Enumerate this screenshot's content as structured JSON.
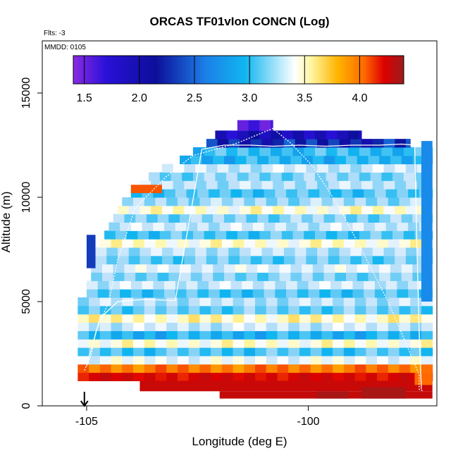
{
  "chart_data": {
    "type": "heatmap",
    "title": "ORCAS TF01vIon CONCN (Log)",
    "subtitle_flights": "Flts: -3",
    "date_label": "MMDD: 0105",
    "xlabel": "Longitude (deg E)",
    "ylabel": "Altitude (m)",
    "xlim": [
      -106.0,
      -97.1
    ],
    "ylim": [
      0,
      17500
    ],
    "x_ticks": [
      -105,
      -100
    ],
    "x_tick_labels": [
      "-105",
      "-100"
    ],
    "y_ticks": [
      0,
      5000,
      10000,
      15000
    ],
    "y_tick_labels": [
      "0",
      "5000",
      "10000",
      "15000"
    ],
    "colorbar": {
      "range": [
        1.4,
        4.4
      ],
      "ticks": [
        1.5,
        2.0,
        2.5,
        3.0,
        3.5,
        4.0
      ],
      "tick_labels": [
        "1.5",
        "2.0",
        "2.5",
        "3.0",
        "3.5",
        "4.0"
      ]
    },
    "start_marker_longitude": -105.05,
    "grid": false,
    "bands": [
      {
        "alt_bottom": 1200,
        "alt_top": 1600,
        "left_lon": -105.2,
        "right_lon": -97.2,
        "value": 3.95
      },
      {
        "alt_bottom": 1600,
        "alt_top": 2000,
        "left_lon": -105.2,
        "right_lon": -97.2,
        "value": 3.6
      },
      {
        "alt_bottom": 2000,
        "alt_top": 2400,
        "left_lon": -105.2,
        "right_lon": -97.2,
        "value": 2.95
      },
      {
        "alt_bottom": 2400,
        "alt_top": 2800,
        "left_lon": -105.2,
        "right_lon": -97.2,
        "value": 2.6
      },
      {
        "alt_bottom": 2800,
        "alt_top": 3200,
        "left_lon": -105.2,
        "right_lon": -97.2,
        "value": 3.05
      },
      {
        "alt_bottom": 3200,
        "alt_top": 3600,
        "left_lon": -105.2,
        "right_lon": -97.2,
        "value": 2.5
      },
      {
        "alt_bottom": 3600,
        "alt_top": 4000,
        "left_lon": -105.2,
        "right_lon": -97.2,
        "value": 2.85
      },
      {
        "alt_bottom": 4000,
        "alt_top": 4400,
        "left_lon": -105.2,
        "right_lon": -97.2,
        "value": 3.1
      },
      {
        "alt_bottom": 4400,
        "alt_top": 4800,
        "left_lon": -105.2,
        "right_lon": -97.2,
        "value": 2.65
      },
      {
        "alt_bottom": 4800,
        "alt_top": 5200,
        "left_lon": -105.2,
        "right_lon": -97.2,
        "value": 2.8
      },
      {
        "alt_bottom": 5200,
        "alt_top": 5600,
        "left_lon": -105.0,
        "right_lon": -97.2,
        "value": 2.6
      },
      {
        "alt_bottom": 5600,
        "alt_top": 6000,
        "left_lon": -105.0,
        "right_lon": -97.2,
        "value": 2.85
      },
      {
        "alt_bottom": 6000,
        "alt_top": 6400,
        "left_lon": -104.9,
        "right_lon": -97.2,
        "value": 2.7
      },
      {
        "alt_bottom": 6400,
        "alt_top": 6800,
        "left_lon": -104.9,
        "right_lon": -97.2,
        "value": 2.9
      },
      {
        "alt_bottom": 6800,
        "alt_top": 7200,
        "left_lon": -104.8,
        "right_lon": -97.2,
        "value": 2.65
      },
      {
        "alt_bottom": 7200,
        "alt_top": 7600,
        "left_lon": -104.8,
        "right_lon": -97.2,
        "value": 2.8
      },
      {
        "alt_bottom": 7600,
        "alt_top": 8000,
        "left_lon": -104.7,
        "right_lon": -97.2,
        "value": 3.05
      },
      {
        "alt_bottom": 8000,
        "alt_top": 8400,
        "left_lon": -104.6,
        "right_lon": -97.2,
        "value": 2.6
      },
      {
        "alt_bottom": 8400,
        "alt_top": 8800,
        "left_lon": -104.5,
        "right_lon": -97.2,
        "value": 2.85
      },
      {
        "alt_bottom": 8800,
        "alt_top": 9200,
        "left_lon": -104.4,
        "right_lon": -97.2,
        "value": 2.7
      },
      {
        "alt_bottom": 9200,
        "alt_top": 9600,
        "left_lon": -104.3,
        "right_lon": -97.2,
        "value": 3.05
      },
      {
        "alt_bottom": 9600,
        "alt_top": 10000,
        "left_lon": -104.2,
        "right_lon": -97.2,
        "value": 2.75
      },
      {
        "alt_bottom": 10000,
        "alt_top": 10400,
        "left_lon": -104.0,
        "right_lon": -97.2,
        "value": 2.6
      },
      {
        "alt_bottom": 10400,
        "alt_top": 10800,
        "left_lon": -103.8,
        "right_lon": -97.2,
        "value": 2.8
      },
      {
        "alt_bottom": 10800,
        "alt_top": 11200,
        "left_lon": -103.6,
        "right_lon": -97.2,
        "value": 2.7
      },
      {
        "alt_bottom": 11200,
        "alt_top": 11600,
        "left_lon": -103.3,
        "right_lon": -97.2,
        "value": 2.85
      },
      {
        "alt_bottom": 11600,
        "alt_top": 12000,
        "left_lon": -102.9,
        "right_lon": -97.2,
        "value": 2.5
      },
      {
        "alt_bottom": 12000,
        "alt_top": 12400,
        "left_lon": -102.6,
        "right_lon": -97.2,
        "value": 2.55
      },
      {
        "alt_bottom": 12400,
        "alt_top": 12800,
        "left_lon": -102.3,
        "right_lon": -97.7,
        "value": 2.05
      },
      {
        "alt_bottom": 12800,
        "alt_top": 13200,
        "left_lon": -102.1,
        "right_lon": -98.8,
        "value": 1.85
      },
      {
        "alt_bottom": 13200,
        "alt_top": 13700,
        "left_lon": -101.6,
        "right_lon": -100.8,
        "value": 1.55
      }
    ],
    "highlights": [
      {
        "alt_bottom": 10200,
        "alt_top": 10600,
        "left_lon": -104.0,
        "right_lon": -103.3,
        "value": 3.7
      },
      {
        "alt_bottom": 700,
        "alt_top": 1200,
        "left_lon": -103.8,
        "right_lon": -97.2,
        "value": 4.05
      },
      {
        "alt_bottom": 350,
        "alt_top": 700,
        "left_lon": -102.0,
        "right_lon": -97.2,
        "value": 4.1
      },
      {
        "alt_bottom": 350,
        "alt_top": 700,
        "left_lon": -99.8,
        "right_lon": -99.1,
        "value": 4.3
      },
      {
        "alt_bottom": 350,
        "alt_top": 900,
        "left_lon": -98.8,
        "right_lon": -97.8,
        "value": 4.3
      },
      {
        "alt_bottom": 1000,
        "alt_top": 1600,
        "left_lon": -97.6,
        "right_lon": -97.2,
        "value": 3.65
      },
      {
        "alt_bottom": 5000,
        "alt_top": 12700,
        "left_lon": -97.45,
        "right_lon": -97.2,
        "value": 2.3
      },
      {
        "alt_bottom": 6600,
        "alt_top": 8200,
        "left_lon": -105.0,
        "right_lon": -104.8,
        "value": 2.1
      }
    ],
    "flight_track_lon": [
      -105.05,
      -104.9,
      -104.8,
      -104.5,
      -104.3,
      -103.9,
      -103.2,
      -102.6,
      -101.6,
      -100.8,
      -100.4,
      -99.9,
      -99.3,
      -98.8,
      -98.2,
      -97.8,
      -97.5,
      -97.5,
      -97.4
    ],
    "flight_track_alt": [
      1700,
      2400,
      3500,
      5000,
      7000,
      9500,
      11000,
      12000,
      12600,
      13300,
      12600,
      11500,
      9500,
      7500,
      5000,
      3000,
      1500,
      800,
      700
    ],
    "flight_track_b_lon": [
      -105.0,
      -104.7,
      -104.3,
      -103.7,
      -103.0,
      -102.4,
      -101.9,
      -101.3,
      -100.8,
      -100.2,
      -99.6,
      -99.0,
      -98.4,
      -97.9,
      -97.6,
      -97.55,
      -97.5,
      -97.45
    ],
    "flight_track_b_alt": [
      1900,
      4200,
      5000,
      5100,
      5050,
      12300,
      12500,
      12500,
      12450,
      12500,
      12450,
      12500,
      12500,
      12550,
      12500,
      7700,
      3600,
      800
    ]
  }
}
